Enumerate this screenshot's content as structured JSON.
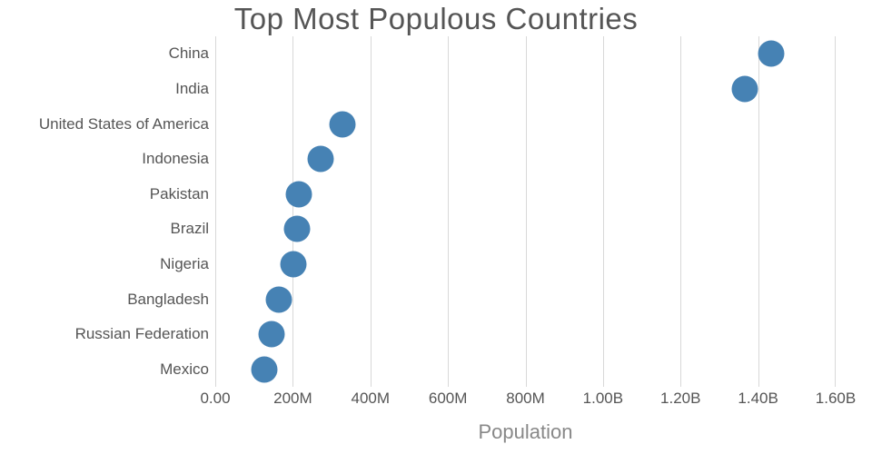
{
  "chart_data": {
    "type": "scatter",
    "title": "Top Most Populous Countries",
    "xlabel": "Population",
    "ylabel": "",
    "categories": [
      "China",
      "India",
      "United States of America",
      "Indonesia",
      "Pakistan",
      "Brazil",
      "Nigeria",
      "Bangladesh",
      "Russian Federation",
      "Mexico"
    ],
    "values": [
      1433783686,
      1366417754,
      329064917,
      270625568,
      216565318,
      211049527,
      200963599,
      163046161,
      145872256,
      127575529
    ],
    "xlim": [
      0,
      1600000000
    ],
    "x_ticks": [
      0,
      200000000,
      400000000,
      600000000,
      800000000,
      1000000000,
      1200000000,
      1400000000,
      1600000000
    ],
    "x_tick_labels": [
      "0.00",
      "200M",
      "400M",
      "600M",
      "800M",
      "1.00B",
      "1.20B",
      "1.40B",
      "1.60B"
    ],
    "grid": "vertical-only",
    "legend": "none",
    "dot_color": "#4682b4",
    "gridline_color": "#d8d8d8",
    "title_color": "#555555",
    "label_color": "#555555",
    "axis_title_color": "#888888"
  }
}
